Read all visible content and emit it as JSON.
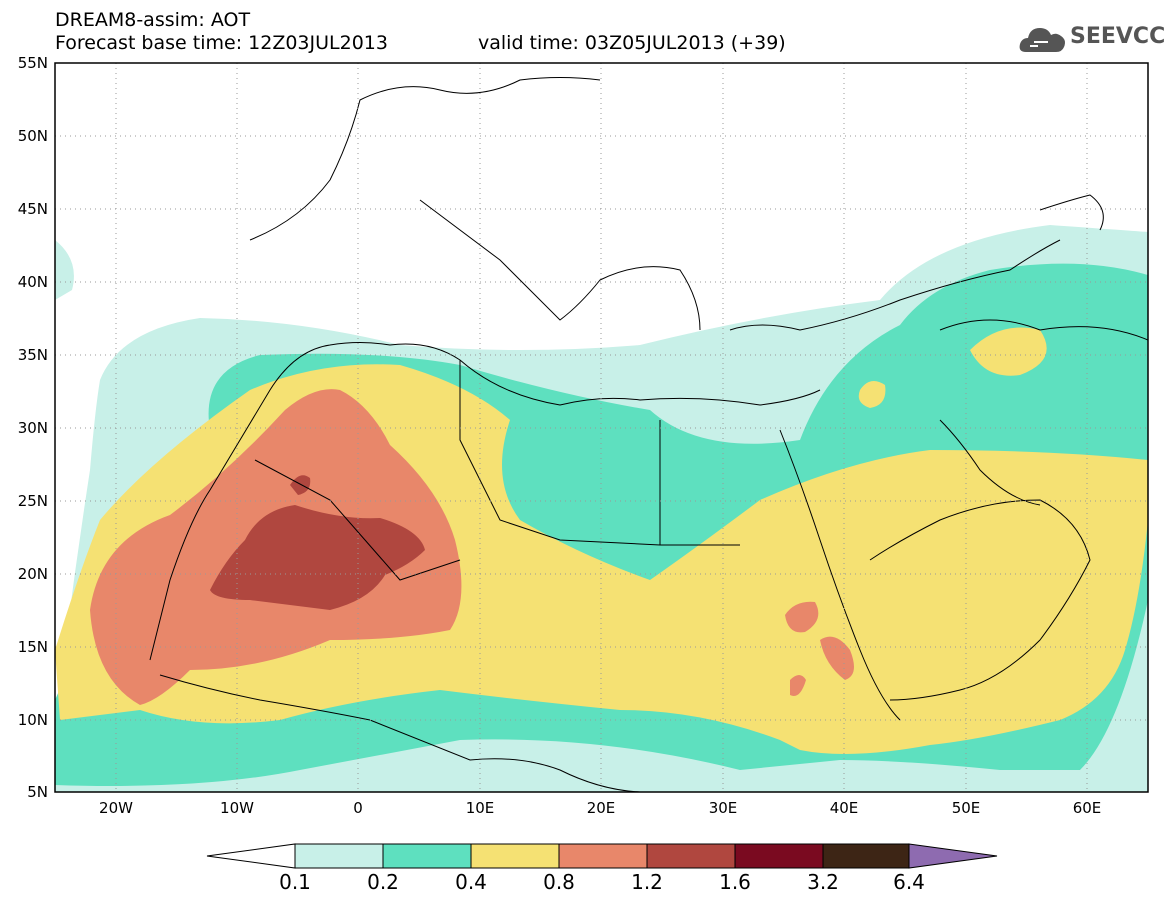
{
  "header": {
    "title": "DREAM8-assim: AOT",
    "base_time": "Forecast base time: 12Z03JUL2013",
    "valid_time": "valid time: 03Z05JUL2013 (+39)"
  },
  "logo": {
    "text": "SEEVCCC",
    "icon": "cloud-logo-icon"
  },
  "axes": {
    "lat_labels": [
      "55N",
      "50N",
      "45N",
      "40N",
      "35N",
      "30N",
      "25N",
      "20N",
      "15N",
      "10N",
      "5N"
    ],
    "lon_labels": [
      "20W",
      "10W",
      "0",
      "10E",
      "20E",
      "30E",
      "40E",
      "50E",
      "60E"
    ],
    "lat_range": [
      5,
      55
    ],
    "lon_range": [
      -25,
      65
    ]
  },
  "colorbar": {
    "labels": [
      "0.1",
      "0.2",
      "0.4",
      "0.8",
      "1.2",
      "1.6",
      "3.2",
      "6.4"
    ],
    "colors": [
      "#ffffff",
      "#c8f0e8",
      "#5ee0bf",
      "#f5e173",
      "#e8876a",
      "#b0473f",
      "#7a0a20",
      "#3d2515",
      "#8e6bb0"
    ]
  },
  "colors": {
    "aot_0_1_0_2": "#c8f0e8",
    "aot_0_2_0_4": "#5ee0bf",
    "aot_0_4_0_8": "#f5e173",
    "aot_0_8_1_2": "#e8876a",
    "aot_1_2_1_6": "#b0473f"
  }
}
